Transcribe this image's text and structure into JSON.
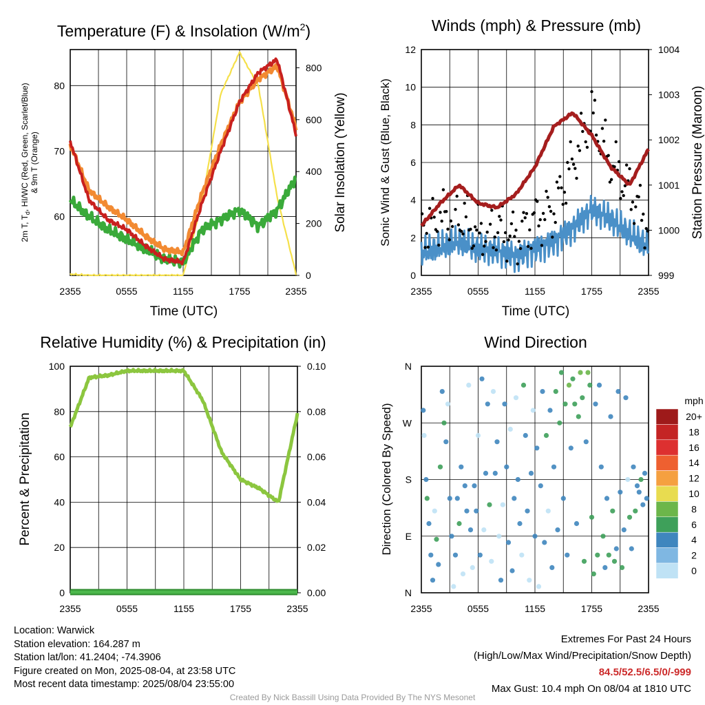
{
  "panels": {
    "temp": {
      "title": "Temperature (F) & Insolation (W/m",
      "title_sup": "2",
      "title_close": ")",
      "ylabel_left_line1": "2m T, T",
      "ylabel_left_sub": "d",
      "ylabel_left_line1_rest": ", HI/WC (Red, Green, Scarlet/Blue)",
      "ylabel_left_line2": "& 9m T (Orange)",
      "ylabel_right": "Solar Insolation (Yellow)",
      "xlabel": "Time (UTC)"
    },
    "wind": {
      "title": "Winds (mph) & Pressure (mb)",
      "ylabel_left": "Sonic Wind & Gust (Blue, Black)",
      "ylabel_right": "Station Pressure (Maroon)",
      "xlabel": "Time (UTC)"
    },
    "rh": {
      "title": "Relative Humidity (%) & Precipitation (in)",
      "ylabel_left": "Percent & Precipitation"
    },
    "dir": {
      "title": "Wind Direction",
      "ylabel_left": "Direction (Colored By Speed)",
      "legend_title": "mph"
    }
  },
  "footer": {
    "location": "Location: Warwick",
    "elevation": "Station elevation: 164.287 m",
    "latlon": "Station lat/lon: 41.2404; -74.3906",
    "created": "Figure created on Mon, 2025-08-04, at 23:58 UTC",
    "recent": "Most recent data timestamp: 2025/08/04 23:55:00",
    "extremes_title": "Extremes For Past 24 Hours",
    "extremes_legend": "(High/Low/Max Wind/Precipitation/Snow Depth)",
    "extremes_values": "84.5/52.5/6.5/0/-999",
    "max_gust": "Max Gust: 10.4 mph On 08/04 at 1810 UTC",
    "credit": "Created By Nick Bassill Using Data Provided By The NYS Mesonet"
  },
  "chart_data": [
    {
      "type": "line",
      "id": "temperature",
      "x_ticks": [
        "2355",
        "0555",
        "1155",
        "1755",
        "2355"
      ],
      "x": [
        0,
        2,
        4,
        6,
        8,
        10,
        12,
        14,
        16,
        18,
        20,
        22,
        24
      ],
      "ylim": [
        51,
        85.5
      ],
      "y_ticks": [
        60,
        70,
        80
      ],
      "y2lim": [
        0,
        870
      ],
      "y2_ticks": [
        0,
        200,
        400,
        600,
        800
      ],
      "series": [
        {
          "key": "temp_2m",
          "color": "#c8201e",
          "axis": "left",
          "values": [
            71.5,
            62.5,
            59.5,
            58,
            55.5,
            53.5,
            53,
            62,
            70,
            77.5,
            82,
            84,
            72.5
          ]
        },
        {
          "key": "temp_9m",
          "color": "#f28a32",
          "axis": "left",
          "values": [
            71,
            64,
            61.5,
            59.5,
            57,
            55,
            54.5,
            63.5,
            71,
            77.5,
            81,
            83,
            73.5
          ]
        },
        {
          "key": "dewpoint",
          "color": "#3aaa3a",
          "axis": "left",
          "values": [
            62.5,
            60,
            58,
            56.5,
            55,
            53.5,
            53,
            58,
            59.5,
            61,
            58.5,
            61,
            66
          ]
        },
        {
          "key": "insolation",
          "color": "#f5e04a",
          "axis": "right",
          "values": [
            5,
            0,
            0,
            0,
            0,
            0,
            0,
            280,
            700,
            860,
            730,
            300,
            5
          ]
        }
      ]
    },
    {
      "type": "line",
      "id": "winds",
      "x_ticks": [
        "2355",
        "0555",
        "1155",
        "1755",
        "2355"
      ],
      "x": [
        0,
        2,
        4,
        6,
        8,
        10,
        12,
        14,
        16,
        18,
        20,
        22,
        24
      ],
      "ylim": [
        0,
        12
      ],
      "y_ticks": [
        0,
        2,
        4,
        6,
        8,
        10,
        12
      ],
      "y2lim": [
        999,
        1004
      ],
      "y2_ticks": [
        999,
        1000,
        1001,
        1002,
        1003,
        1004
      ],
      "series": [
        {
          "key": "sonic_wind",
          "color": "#4a90c8",
          "axis": "left",
          "values": [
            1.2,
            1.5,
            1.8,
            1.4,
            1.3,
            1.0,
            1.4,
            1.8,
            2.5,
            3.5,
            3.0,
            2.2,
            1.5
          ]
        },
        {
          "key": "gust",
          "color": "#000000",
          "axis": "left",
          "style": "dots",
          "values": [
            2.5,
            3.0,
            3.2,
            2.2,
            2.5,
            2.0,
            3.0,
            3.5,
            6.0,
            8.5,
            6.0,
            4.5,
            2.6
          ]
        },
        {
          "key": "pressure",
          "color": "#a51e1e",
          "axis": "right",
          "values": [
            1000.1,
            1000.6,
            1001.0,
            1000.6,
            1000.5,
            1000.8,
            1001.4,
            1002.3,
            1002.6,
            1002.1,
            1001.4,
            1001.0,
            1001.8
          ]
        }
      ]
    },
    {
      "type": "line",
      "id": "humidity",
      "x_ticks": [
        "2355",
        "0555",
        "1155",
        "1755",
        "2355"
      ],
      "x": [
        0,
        2,
        4,
        6,
        8,
        10,
        12,
        14,
        16,
        18,
        20,
        22,
        24
      ],
      "ylim": [
        0,
        100
      ],
      "y_ticks": [
        0,
        20,
        40,
        60,
        80,
        100
      ],
      "y2lim": [
        0,
        0.1
      ],
      "y2_ticks": [
        "0.00",
        "0.02",
        "0.04",
        "0.06",
        "0.08",
        "0.10"
      ],
      "series": [
        {
          "key": "rh",
          "color": "#8cc63f",
          "axis": "left",
          "values": [
            73,
            95,
            96,
            98,
            98,
            98,
            98,
            85,
            62,
            50,
            46,
            40,
            79
          ]
        },
        {
          "key": "precip",
          "color": "#2e8b2e",
          "axis": "right",
          "values": [
            0,
            0,
            0,
            0,
            0,
            0,
            0,
            0,
            0,
            0,
            0,
            0,
            0
          ]
        }
      ]
    },
    {
      "type": "scatter",
      "id": "direction",
      "x_ticks": [
        "2355",
        "0555",
        "1155",
        "1755",
        "2355"
      ],
      "y_ticks": [
        "N",
        "E",
        "S",
        "W",
        "N"
      ],
      "ylim": [
        0,
        360
      ],
      "points": [
        [
          0.2,
          290,
          2
        ],
        [
          0.3,
          250,
          1
        ],
        [
          0.5,
          180,
          3
        ],
        [
          0.6,
          150,
          4
        ],
        [
          0.8,
          110,
          2
        ],
        [
          1.0,
          60,
          3
        ],
        [
          1.2,
          20,
          2
        ],
        [
          1.4,
          130,
          1
        ],
        [
          1.6,
          85,
          4
        ],
        [
          1.8,
          45,
          3
        ],
        [
          2.0,
          200,
          5
        ],
        [
          2.2,
          320,
          3
        ],
        [
          2.4,
          270,
          4
        ],
        [
          2.6,
          240,
          2
        ],
        [
          2.8,
          300,
          1
        ],
        [
          3.0,
          150,
          3
        ],
        [
          3.2,
          90,
          2
        ],
        [
          3.4,
          10,
          1
        ],
        [
          3.6,
          60,
          3
        ],
        [
          3.8,
          150,
          2
        ],
        [
          4.0,
          110,
          4
        ],
        [
          4.2,
          200,
          3
        ],
        [
          4.4,
          30,
          1
        ],
        [
          4.6,
          170,
          2
        ],
        [
          4.8,
          130,
          3
        ],
        [
          5.0,
          330,
          1
        ],
        [
          5.2,
          100,
          2
        ],
        [
          5.4,
          40,
          1
        ],
        [
          5.6,
          170,
          3
        ],
        [
          5.8,
          130,
          2
        ],
        [
          6.0,
          250,
          1
        ],
        [
          6.2,
          60,
          3
        ],
        [
          6.4,
          340,
          2
        ],
        [
          6.6,
          100,
          1
        ],
        [
          6.8,
          190,
          3
        ],
        [
          7.0,
          300,
          2
        ],
        [
          7.2,
          140,
          4
        ],
        [
          7.4,
          50,
          1
        ],
        [
          7.6,
          320,
          1
        ],
        [
          7.8,
          190,
          2
        ],
        [
          8.0,
          240,
          3
        ],
        [
          8.2,
          90,
          1
        ],
        [
          8.4,
          20,
          2
        ],
        [
          8.6,
          140,
          1
        ],
        [
          8.8,
          300,
          2
        ],
        [
          9.0,
          200,
          3
        ],
        [
          9.2,
          80,
          2
        ],
        [
          9.4,
          260,
          1
        ],
        [
          9.6,
          35,
          3
        ],
        [
          9.8,
          150,
          2
        ],
        [
          10.0,
          310,
          1
        ],
        [
          10.2,
          180,
          2
        ],
        [
          10.4,
          110,
          3
        ],
        [
          10.6,
          60,
          1
        ],
        [
          10.8,
          330,
          4
        ],
        [
          11.0,
          250,
          2
        ],
        [
          11.2,
          130,
          3
        ],
        [
          11.4,
          20,
          1
        ],
        [
          11.6,
          190,
          2
        ],
        [
          11.8,
          290,
          1
        ],
        [
          12.0,
          90,
          2
        ],
        [
          12.2,
          230,
          3
        ],
        [
          12.4,
          10,
          1
        ],
        [
          12.6,
          170,
          2
        ],
        [
          12.8,
          320,
          3
        ],
        [
          13.0,
          80,
          2
        ],
        [
          13.2,
          250,
          4
        ],
        [
          13.4,
          130,
          1
        ],
        [
          13.6,
          290,
          3
        ],
        [
          13.8,
          40,
          2
        ],
        [
          14.0,
          200,
          3
        ],
        [
          14.2,
          320,
          4
        ],
        [
          14.4,
          100,
          2
        ],
        [
          14.6,
          270,
          5
        ],
        [
          14.8,
          350,
          4
        ],
        [
          15.0,
          150,
          2
        ],
        [
          15.2,
          300,
          5
        ],
        [
          15.4,
          60,
          3
        ],
        [
          15.6,
          330,
          6
        ],
        [
          15.8,
          230,
          3
        ],
        [
          16.0,
          340,
          5
        ],
        [
          16.2,
          300,
          4
        ],
        [
          16.4,
          110,
          2
        ],
        [
          16.6,
          280,
          5
        ],
        [
          16.8,
          350,
          6
        ],
        [
          17.0,
          310,
          4
        ],
        [
          17.2,
          50,
          5
        ],
        [
          17.4,
          240,
          3
        ],
        [
          17.6,
          350,
          7
        ],
        [
          17.8,
          330,
          5
        ],
        [
          18.0,
          120,
          4
        ],
        [
          18.2,
          30,
          4
        ],
        [
          18.4,
          300,
          3
        ],
        [
          18.6,
          60,
          5
        ],
        [
          18.8,
          330,
          2
        ],
        [
          19.0,
          200,
          3
        ],
        [
          19.2,
          90,
          4
        ],
        [
          19.4,
          40,
          3
        ],
        [
          19.6,
          150,
          2
        ],
        [
          19.8,
          60,
          4
        ],
        [
          20.0,
          280,
          2
        ],
        [
          20.2,
          130,
          5
        ],
        [
          20.4,
          50,
          4
        ],
        [
          20.6,
          70,
          3
        ],
        [
          20.8,
          320,
          2
        ],
        [
          21.0,
          160,
          3
        ],
        [
          21.2,
          40,
          5
        ],
        [
          21.4,
          100,
          3
        ],
        [
          21.6,
          310,
          2
        ],
        [
          21.8,
          180,
          1
        ],
        [
          22.0,
          120,
          4
        ],
        [
          22.2,
          70,
          3
        ],
        [
          22.4,
          200,
          2
        ],
        [
          22.6,
          130,
          4
        ],
        [
          22.8,
          170,
          3
        ],
        [
          23.0,
          160,
          2
        ],
        [
          23.2,
          180,
          4
        ],
        [
          23.4,
          140,
          3
        ],
        [
          23.6,
          190,
          2
        ],
        [
          23.8,
          150,
          3
        ]
      ]
    }
  ],
  "speed_legend": {
    "labels": [
      "20+",
      "18",
      "16",
      "14",
      "12",
      "10",
      "8",
      "6",
      "4",
      "2",
      "0"
    ],
    "colors": [
      "#9e1a1a",
      "#c42424",
      "#dd3030",
      "#ee6030",
      "#f5a040",
      "#e8dc50",
      "#6cb64a",
      "#3ea05a",
      "#3f86be",
      "#7fb7e2",
      "#bfe2f5"
    ]
  }
}
